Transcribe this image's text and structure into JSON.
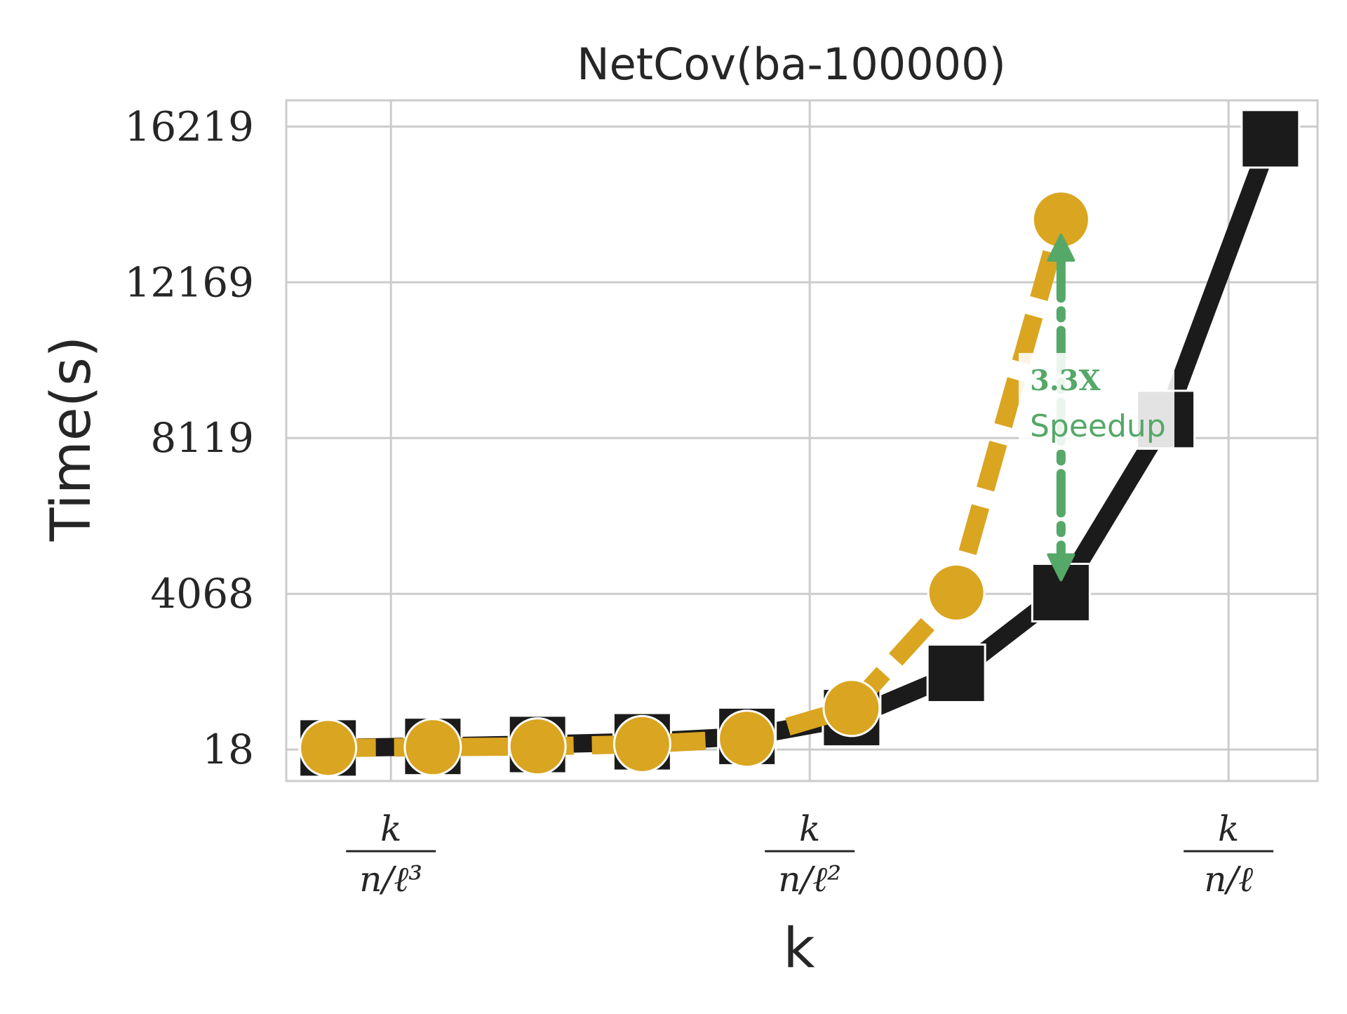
{
  "chart_data": {
    "type": "line",
    "title": "NetCov(ba-100000)",
    "xlabel": "k",
    "ylabel": "Time(s)",
    "yticks": [
      "16219",
      "12169",
      "8119",
      "4068",
      "18"
    ],
    "ytick_values": [
      16219,
      12169,
      8119,
      4068,
      18
    ],
    "ylim": [
      -800,
      16900
    ],
    "xtick_labels": [
      {
        "num": "k",
        "den": "n/ℓ³"
      },
      {
        "num": "k",
        "den": "n/ℓ²"
      },
      {
        "num": "k",
        "den": "n/ℓ"
      }
    ],
    "x": [
      1,
      2,
      3,
      4,
      5,
      6,
      7,
      8,
      9,
      10
    ],
    "xtick_positions": [
      1.6,
      5.6,
      9.6
    ],
    "xlim": [
      0.6,
      10.45
    ],
    "grid": true,
    "series": [
      {
        "color": "#1b1b1b",
        "marker": "square",
        "style": "solid",
        "x": [
          1,
          2,
          3,
          4,
          5,
          6,
          7,
          8,
          9,
          10
        ],
        "values": [
          60,
          100,
          150,
          220,
          360,
          850,
          2000,
          4100,
          8600,
          15900
        ]
      },
      {
        "color": "#daa520",
        "marker": "circle",
        "style": "dashed",
        "x": [
          1,
          2,
          3,
          4,
          5,
          6,
          7,
          8
        ],
        "values": [
          60,
          80,
          100,
          160,
          300,
          1100,
          4100,
          13800
        ]
      }
    ],
    "annotation": {
      "line1": "3.3X",
      "line2": "Speedup",
      "color": "#55a868",
      "x": 8,
      "y_from": 4100,
      "y_to": 13800
    }
  }
}
